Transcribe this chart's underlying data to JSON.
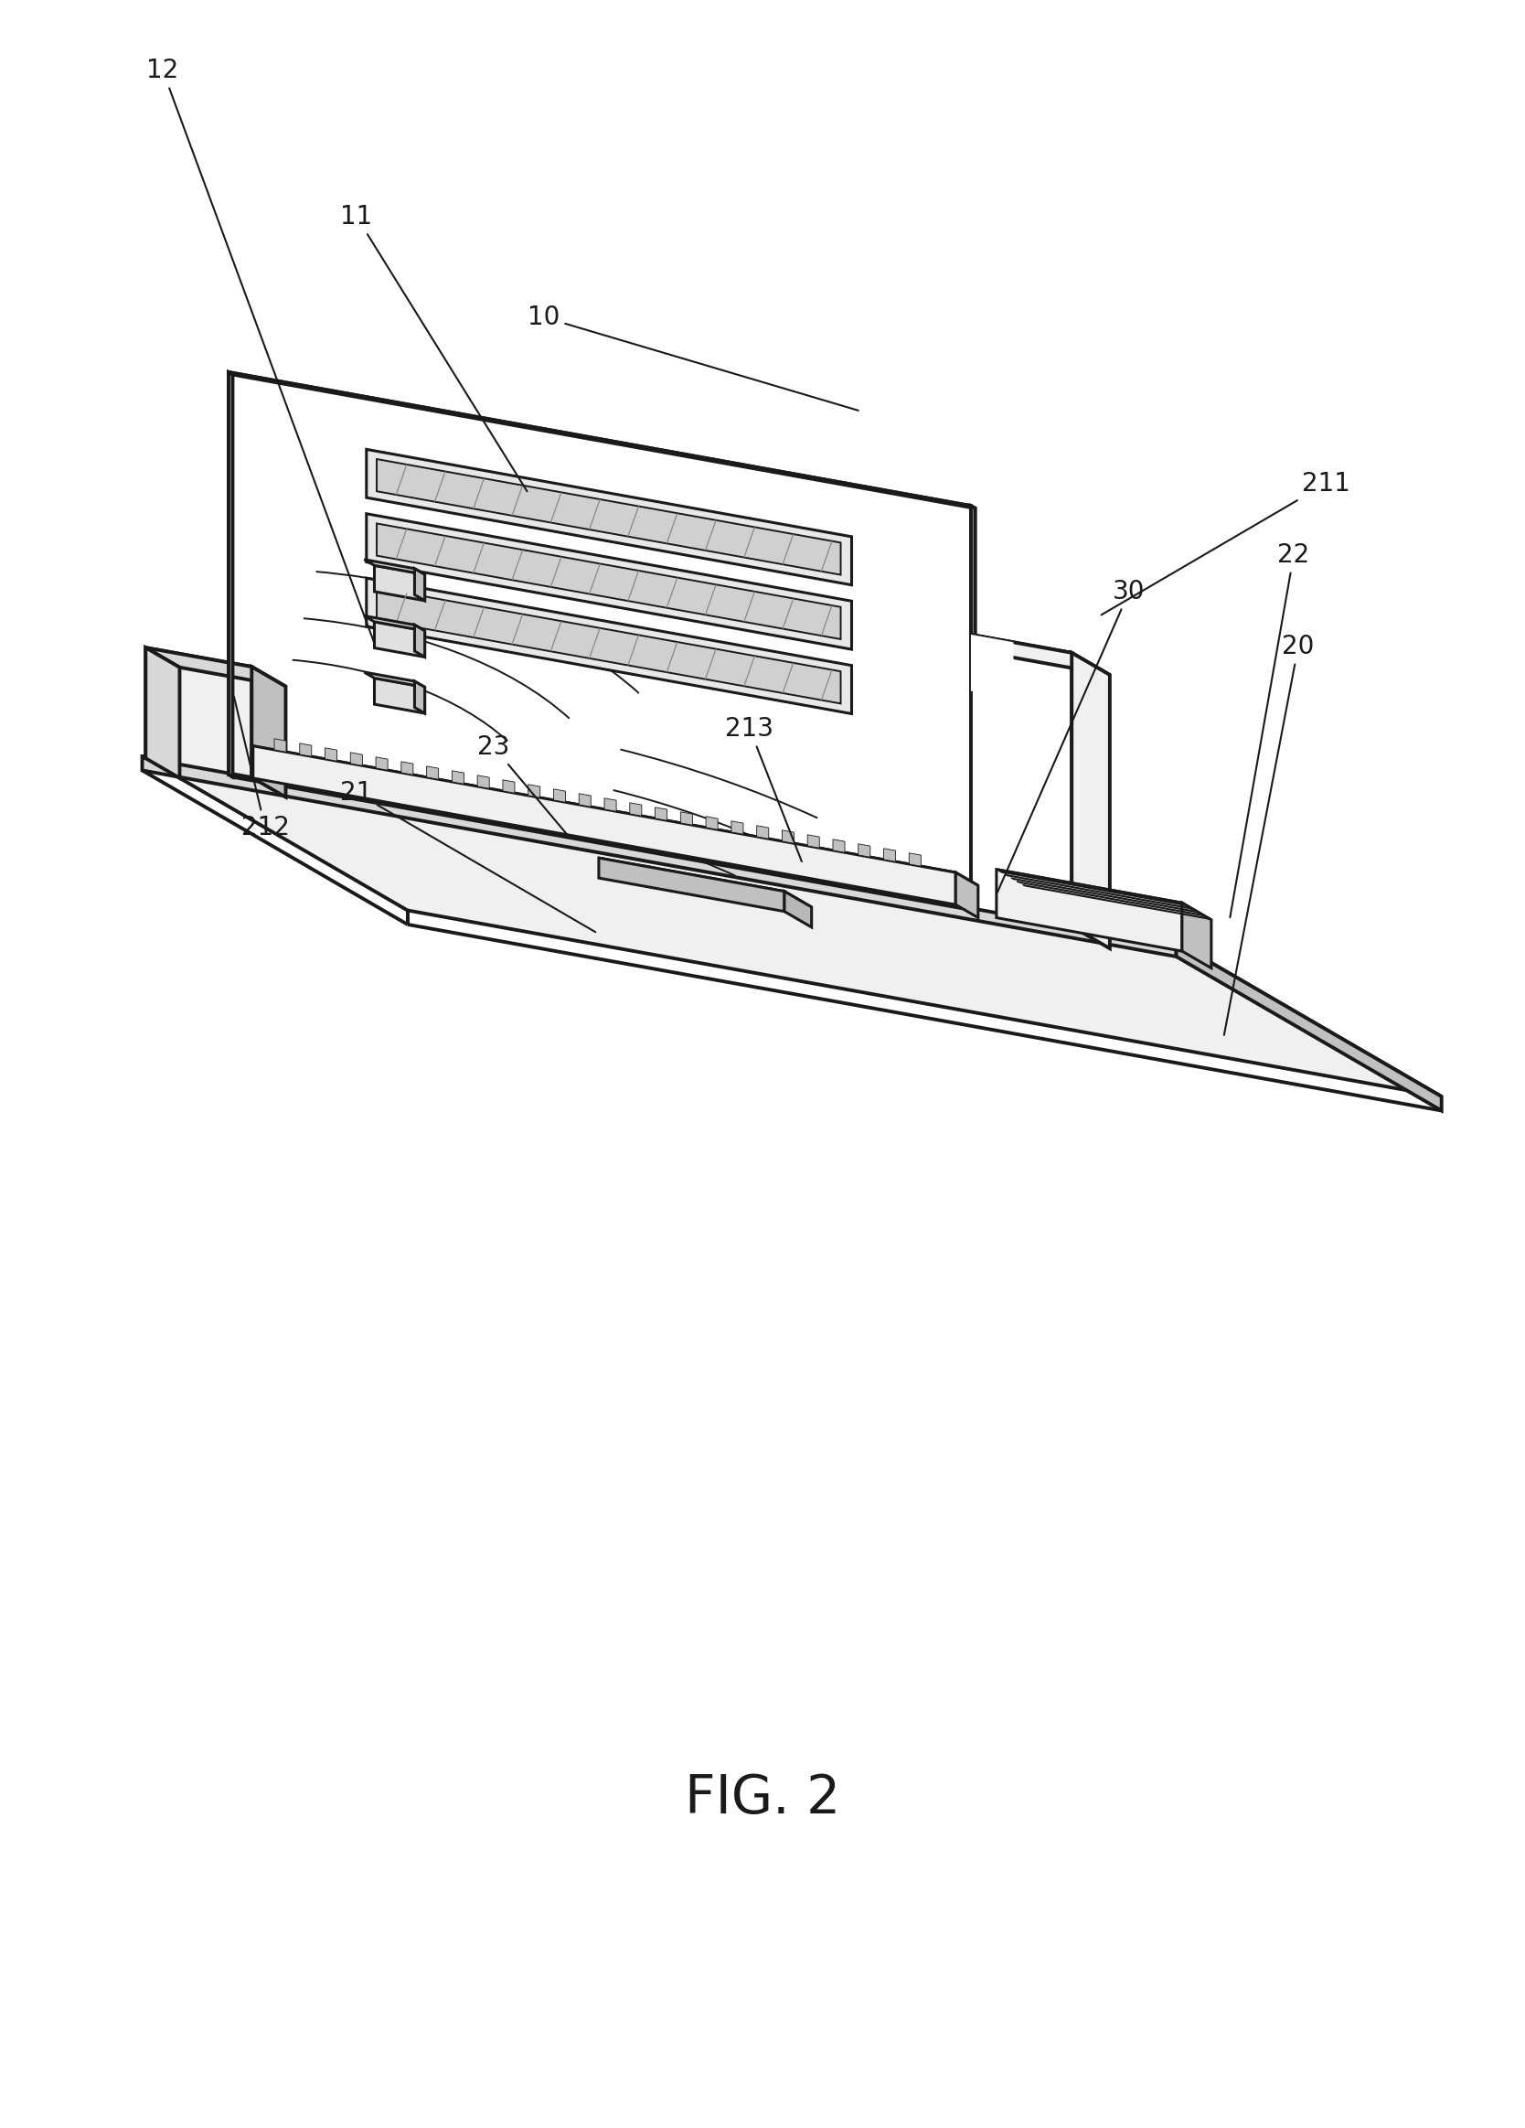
{
  "title": "FIG. 2",
  "background_color": "#ffffff",
  "line_color": "#1a1a1a",
  "label_fontsize": 20,
  "title_fontsize": 42,
  "fig_width": 16.68,
  "fig_height": 23.27
}
